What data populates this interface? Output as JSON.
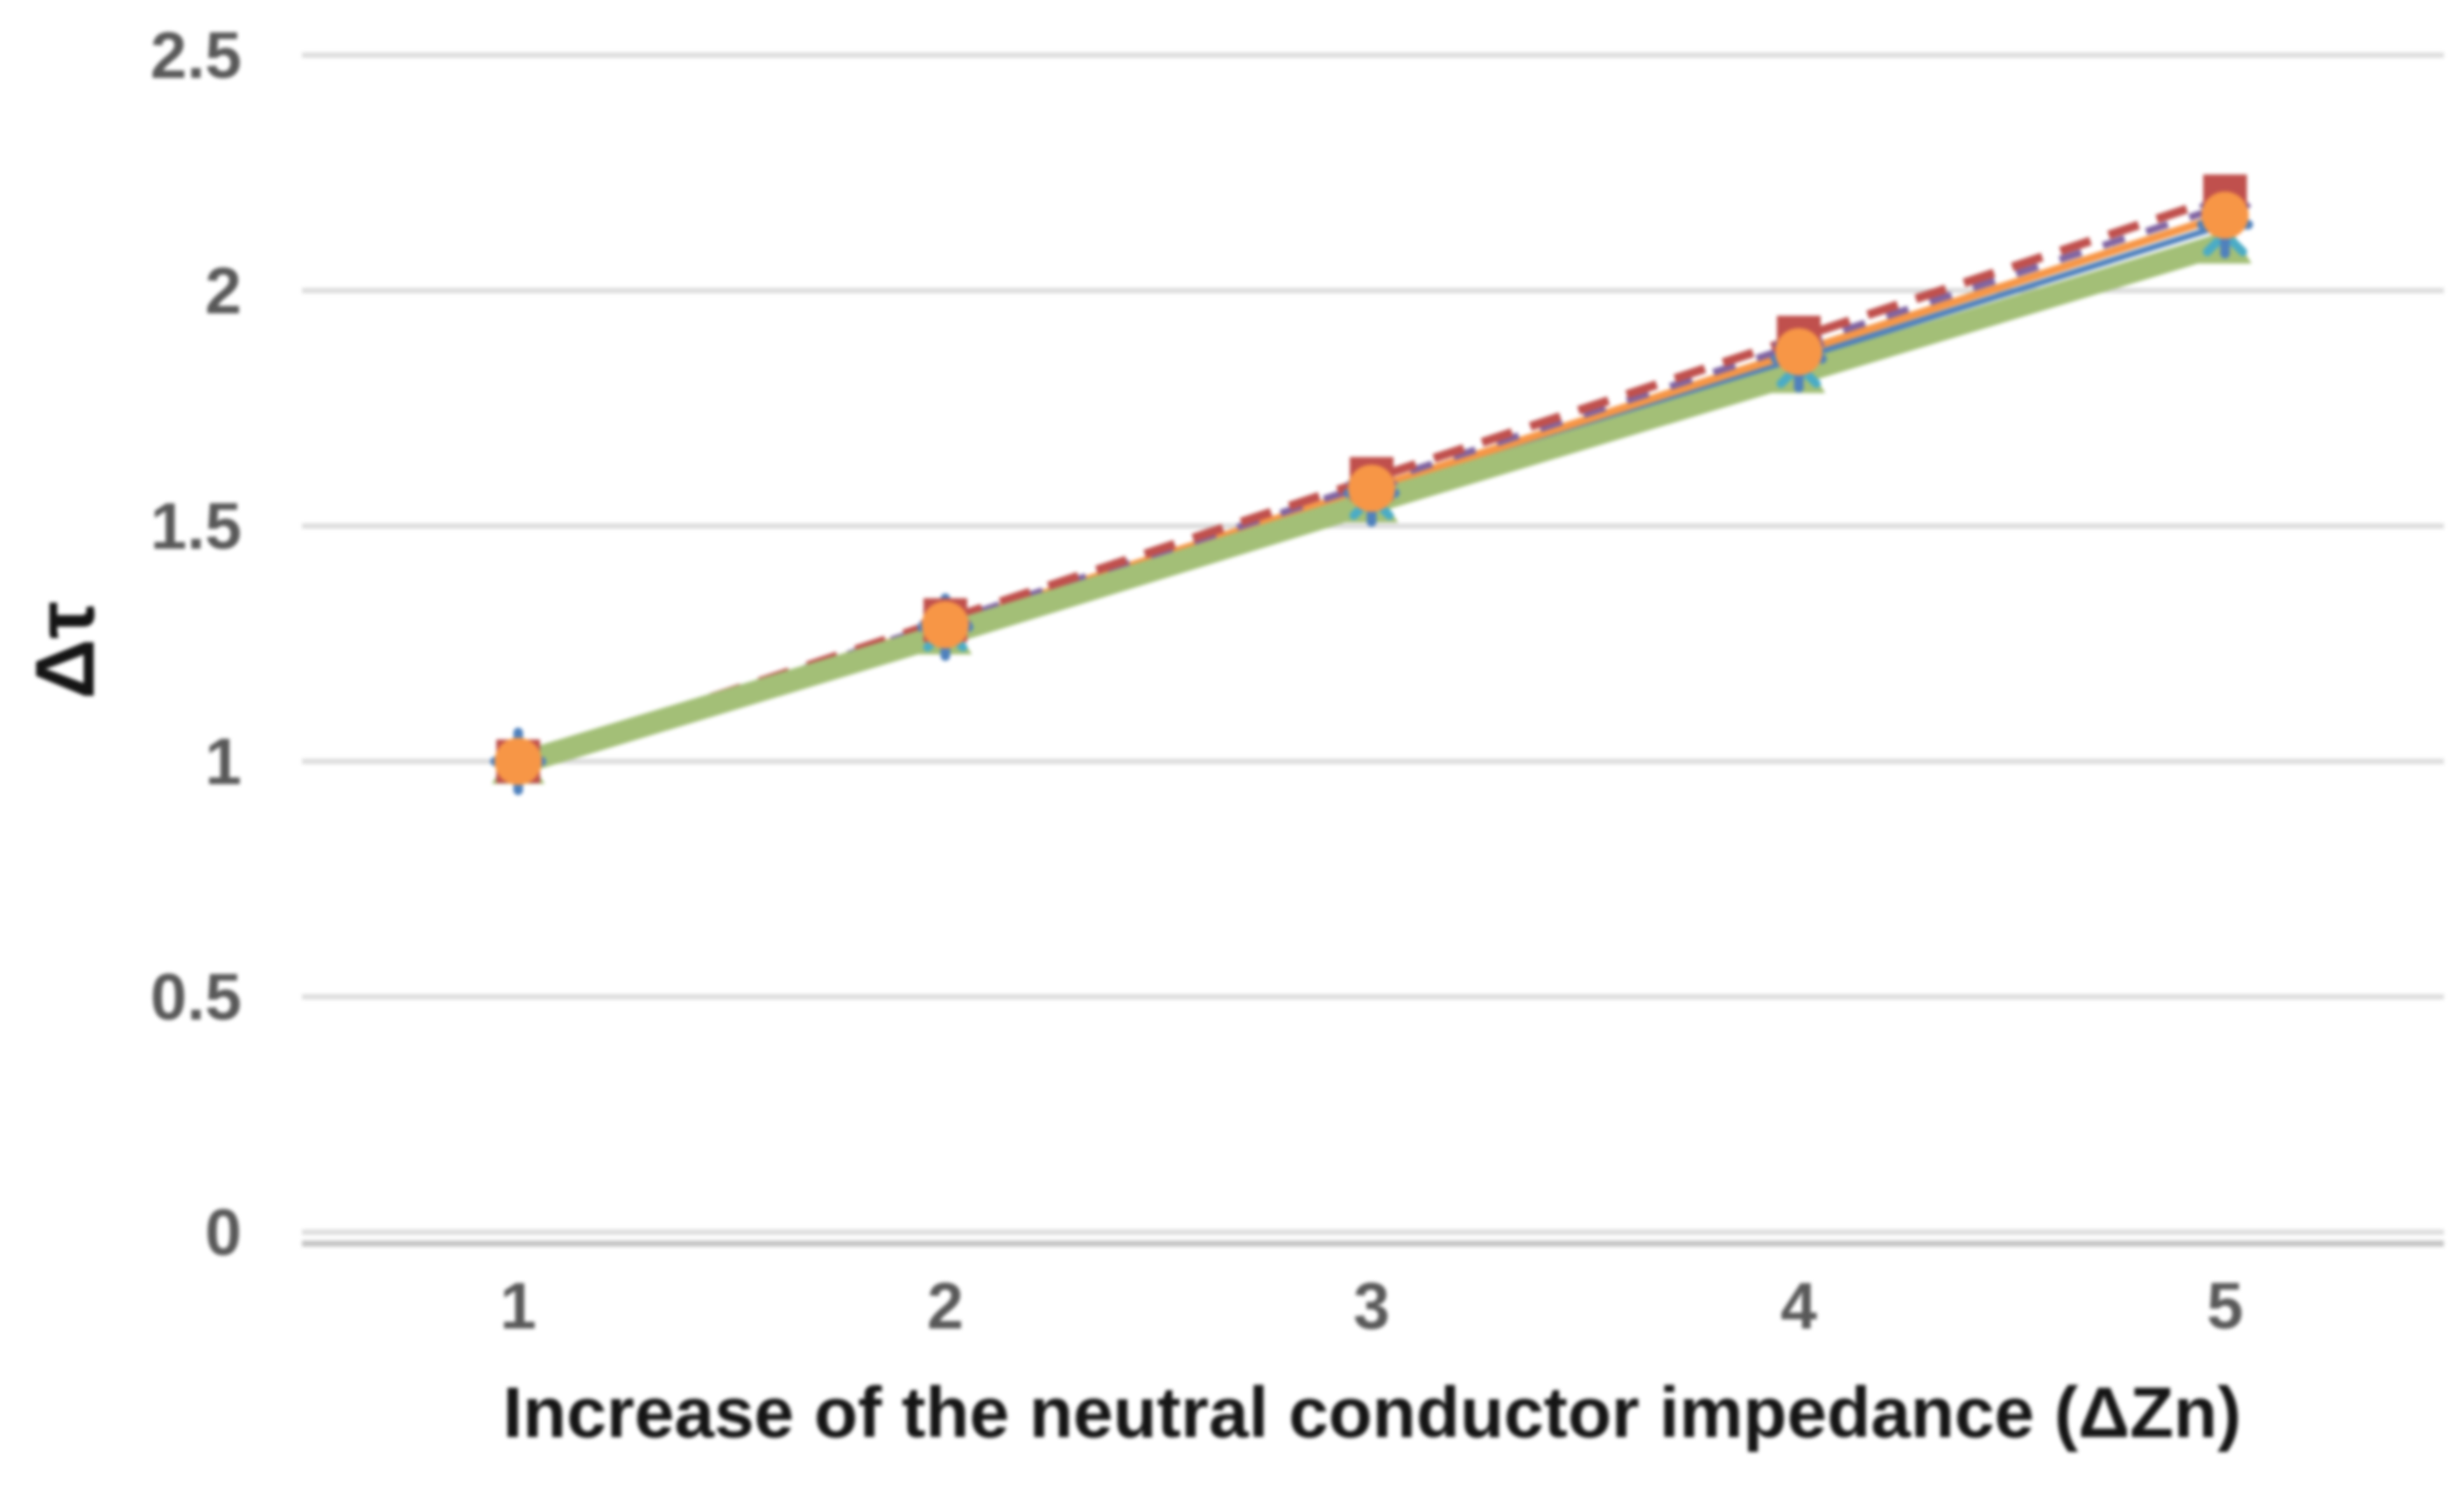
{
  "chart_data": {
    "type": "line",
    "title": "",
    "xlabel": "Increase of the neutral conductor impedance (ΔZn)",
    "ylabel": "Δτ",
    "x": [
      1,
      2,
      3,
      4,
      5
    ],
    "x_tick_labels": [
      "1",
      "2",
      "3",
      "4",
      "5"
    ],
    "y_tick_labels": [
      "0",
      "0.5",
      "1",
      "1.5",
      "2",
      "2.5"
    ],
    "y_tick_values": [
      0,
      0.5,
      1,
      1.5,
      2,
      2.5
    ],
    "ylim": [
      0,
      2.5
    ],
    "grid": "horizontal",
    "legend_position": "none",
    "gridline_color": "#dcdcdc",
    "axis_line_color": "#c4c4c4",
    "tick_label_color": "#595959",
    "series": [
      {
        "name": "s1-blue",
        "color": "#4F81BD",
        "marker": "plus",
        "line": "solid",
        "width": 7,
        "values": [
          1.0,
          1.285,
          1.57,
          1.855,
          2.14
        ]
      },
      {
        "name": "s2-cyan",
        "color": "#4BACC6",
        "marker": "x",
        "line": "solid",
        "width": 6,
        "values": [
          1.0,
          1.28,
          1.56,
          1.84,
          2.12
        ]
      },
      {
        "name": "s3-orange",
        "color": "#F79646",
        "marker": "circle",
        "line": "solid",
        "width": 9,
        "values": [
          1.0,
          1.29,
          1.58,
          1.87,
          2.16
        ]
      },
      {
        "name": "s4-purple",
        "color": "#8064A2",
        "marker": "diamond",
        "line": "dashed",
        "width": 8,
        "values": [
          1.0,
          1.295,
          1.59,
          1.885,
          2.18
        ]
      },
      {
        "name": "s5-red",
        "color": "#C0504D",
        "marker": "square",
        "line": "dashed",
        "width": 10,
        "values": [
          1.0,
          1.3,
          1.6,
          1.9,
          2.2
        ]
      },
      {
        "name": "s6-green",
        "color": "#A3BF77",
        "marker": "triangle",
        "line": "solid",
        "width": 26,
        "values": [
          0.995,
          1.27,
          1.55,
          1.825,
          2.1
        ]
      }
    ],
    "marker_draw_order": [
      "s4-purple",
      "s6-green",
      "s2-cyan",
      "s1-blue",
      "s5-red",
      "s3-orange"
    ]
  }
}
